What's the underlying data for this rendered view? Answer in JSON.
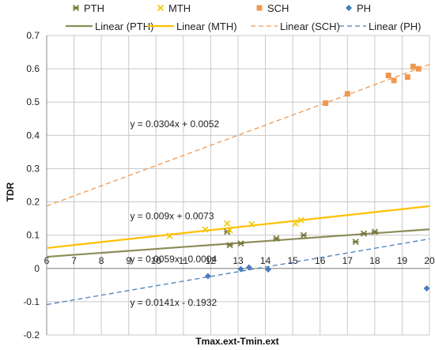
{
  "chart_data": {
    "type": "scatter",
    "xlabel": "Tmax.ext-Tmin.ext",
    "ylabel": "TDR",
    "xlim": [
      6,
      20
    ],
    "ylim": [
      -0.2,
      0.7
    ],
    "xticks": [
      "6",
      "7",
      "8",
      "9",
      "10",
      "11",
      "12",
      "13",
      "14",
      "15",
      "16",
      "17",
      "18",
      "19",
      "20"
    ],
    "yticks": [
      "-0.2",
      "-0.1",
      "0",
      "0.1",
      "0.2",
      "0.3",
      "0.4",
      "0.5",
      "0.6",
      "0.7"
    ],
    "grid": true,
    "legend_position": "top",
    "series": [
      {
        "name": "PTH",
        "marker": "star",
        "color": "#77773c",
        "points": [
          [
            12.6,
            0.11
          ],
          [
            12.7,
            0.07
          ],
          [
            13.1,
            0.075
          ],
          [
            14.4,
            0.09
          ],
          [
            15.4,
            0.1
          ],
          [
            17.3,
            0.08
          ],
          [
            17.6,
            0.105
          ],
          [
            18.0,
            0.11
          ]
        ]
      },
      {
        "name": "MTH",
        "marker": "x",
        "color": "#f0c800",
        "points": [
          [
            10.5,
            0.098
          ],
          [
            11.8,
            0.117
          ],
          [
            12.6,
            0.135
          ],
          [
            12.7,
            0.115
          ],
          [
            13.5,
            0.133
          ],
          [
            15.1,
            0.135
          ],
          [
            15.3,
            0.145
          ]
        ]
      },
      {
        "name": "SCH",
        "marker": "square",
        "color": "#f09850",
        "points": [
          [
            16.2,
            0.497
          ],
          [
            17.0,
            0.525
          ],
          [
            18.5,
            0.58
          ],
          [
            18.7,
            0.565
          ],
          [
            19.2,
            0.575
          ],
          [
            19.4,
            0.607
          ],
          [
            19.6,
            0.6
          ]
        ]
      },
      {
        "name": "PH",
        "marker": "diamond",
        "color": "#4a7ebb",
        "points": [
          [
            11.9,
            -0.023
          ],
          [
            13.1,
            -0.002
          ],
          [
            13.4,
            0.003
          ],
          [
            14.1,
            -0.003
          ],
          [
            19.9,
            -0.06
          ]
        ]
      }
    ],
    "trendlines": [
      {
        "name": "Linear (PTH)",
        "slope": 0.0059,
        "intercept": -0.0004,
        "color": "#8c8c5a",
        "style": "solid",
        "equation": "y = 0.0059x - 0.0004"
      },
      {
        "name": "Linear (MTH)",
        "slope": 0.009,
        "intercept": 0.0073,
        "color": "#ffc000",
        "style": "solid",
        "equation": "y = 0.009x + 0.0073"
      },
      {
        "name": "Linear (SCH)",
        "slope": 0.0304,
        "intercept": 0.0052,
        "color": "#f09850",
        "style": "dashed",
        "equation": "y = 0.0304x + 0.0052"
      },
      {
        "name": "Linear (PH)",
        "slope": 0.0141,
        "intercept": -0.1932,
        "color": "#4a7ebb",
        "style": "dashed",
        "equation": "y = 0.0141x - 0.1932"
      }
    ]
  }
}
